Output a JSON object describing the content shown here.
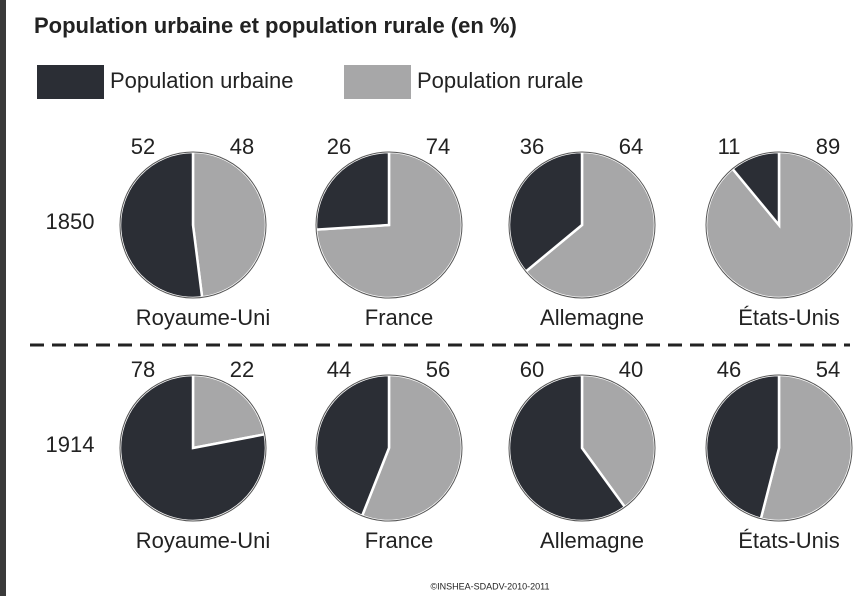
{
  "chart_data": {
    "type": "pie",
    "title": "Population urbaine et population rurale (en %)",
    "series": [
      {
        "name": "Population urbaine",
        "color": "#2b2e35"
      },
      {
        "name": "Population rurale",
        "color": "#a7a7a8"
      }
    ],
    "rows": [
      {
        "label": "1850",
        "pies": [
          {
            "category": "Royaume-Uni",
            "values": [
              52,
              48
            ]
          },
          {
            "category": "France",
            "values": [
              26,
              74
            ]
          },
          {
            "category": "Allemagne",
            "values": [
              36,
              64
            ]
          },
          {
            "category": "États-Unis",
            "values": [
              11,
              89
            ]
          }
        ]
      },
      {
        "label": "1914",
        "pies": [
          {
            "category": "Royaume-Uni",
            "values": [
              78,
              22
            ]
          },
          {
            "category": "France",
            "values": [
              44,
              56
            ]
          },
          {
            "category": "Allemagne",
            "values": [
              60,
              40
            ]
          },
          {
            "category": "États-Unis",
            "values": [
              46,
              54
            ]
          }
        ]
      }
    ],
    "source": "©INSHEA-SDADV-2010-2011"
  }
}
